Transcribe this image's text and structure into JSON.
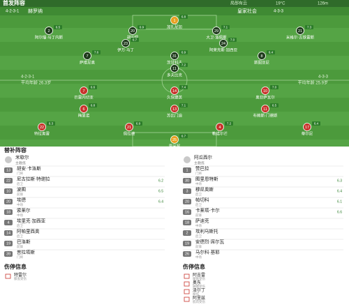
{
  "header": {
    "title": "首发阵容",
    "weather": "局部有云",
    "temperature": "19°C",
    "altitude": "126m"
  },
  "teams": [
    {
      "name": "赫罗纳",
      "formation": "4-2-3-1",
      "average_age": "平均年龄 26.3岁",
      "coach": "米歇尔",
      "coach_role": "主教练",
      "players": [
        {
          "number": "1",
          "name": "加扎尼加",
          "rating": "6.8"
        },
        {
          "number": "2",
          "name": "阿尔瑙·马丁内斯",
          "rating": "6.5"
        },
        {
          "number": "20",
          "name": "胡安佩",
          "rating": "6.9"
        },
        {
          "number": "29",
          "name": "大卫·洛佩斯",
          "rating": "7.1"
        },
        {
          "number": "21",
          "name": "米格尔·古铁雷斯",
          "rating": "7.3"
        },
        {
          "number": "23",
          "name": "伊万·马丁",
          "rating": "6.7"
        },
        {
          "number": "24",
          "name": "阿莱克斯·加西亚",
          "rating": "7.0"
        },
        {
          "number": "7",
          "name": "萨维尼奥",
          "rating": "7.6"
        },
        {
          "number": "31",
          "name": "茨甘科夫",
          "rating": "6.9"
        },
        {
          "number": "8",
          "name": "斯图亚尼",
          "rating": "6.4"
        },
        {
          "number": "11",
          "name": "多夫比克",
          "rating": "7.2"
        }
      ],
      "subs": [
        {
          "number": "13",
          "name": "胡安·卡洛斯",
          "position": "门将",
          "rating": ""
        },
        {
          "number": "22",
          "name": "尼古拉斯·特谢拉",
          "position": "后卫",
          "rating": "6.2"
        },
        {
          "number": "10",
          "name": "波图",
          "position": "前锋",
          "rating": "6.5"
        },
        {
          "number": "20",
          "name": "埃德",
          "position": "中场",
          "rating": "6.4"
        },
        {
          "number": "18",
          "name": "索莱尔",
          "position": "中场",
          "rating": ""
        },
        {
          "number": "4",
          "name": "埃里克·加西亚",
          "position": "后卫",
          "rating": ""
        },
        {
          "number": "14",
          "name": "阿帕里西奥",
          "position": "后卫",
          "rating": ""
        },
        {
          "number": "19",
          "name": "巴洛斯",
          "position": "前锋",
          "rating": ""
        },
        {
          "number": "39",
          "name": "普拉塔斯",
          "position": "门将",
          "rating": ""
        }
      ],
      "injuries_title": "伤停信息",
      "injuries": [
        {
          "name": "特雷尔",
          "reason": "膝盖受伤"
        }
      ]
    },
    {
      "name": "皇家社会",
      "formation": "4-3-3",
      "average_age": "平均年龄 25.9岁",
      "coach": "阿瓜西尔",
      "coach_role": "主教练",
      "players": [
        {
          "number": "7",
          "name": "巴雷内切亚",
          "rating": "6.6"
        },
        {
          "number": "14",
          "name": "久保建英",
          "rating": "7.4"
        },
        {
          "number": "10",
          "name": "奥亚萨瓦尔",
          "rating": "7.0"
        },
        {
          "number": "6",
          "name": "梅里诺",
          "rating": "6.8"
        },
        {
          "number": "13",
          "name": "苏比门迪",
          "rating": "7.1"
        },
        {
          "number": "11",
          "name": "布赖斯·门德斯",
          "rating": "6.5"
        },
        {
          "number": "22",
          "name": "特拉奥雷",
          "rating": "6.3"
        },
        {
          "number": "21",
          "name": "佩拉德",
          "rating": "6.9"
        },
        {
          "number": "4",
          "name": "勒诺尔芒",
          "rating": "7.2"
        },
        {
          "number": "17",
          "name": "蒂尔尼",
          "rating": "6.4"
        },
        {
          "number": "25",
          "name": "雷米罗",
          "rating": "6.7"
        }
      ],
      "subs": [
        {
          "number": "1",
          "name": "赞巴拉",
          "position": "门将",
          "rating": ""
        },
        {
          "number": "30",
          "name": "图里恩特斯",
          "position": "中场",
          "rating": "6.3"
        },
        {
          "number": "3",
          "name": "穆尼奥斯",
          "position": "后卫",
          "rating": "6.4"
        },
        {
          "number": "20",
          "name": "帕切科",
          "position": "后卫",
          "rating": "6.1"
        },
        {
          "number": "16",
          "name": "卡莱塔-卡尔",
          "position": "前锋",
          "rating": "6.6"
        },
        {
          "number": "18",
          "name": "萨迪克",
          "position": "中场",
          "rating": ""
        },
        {
          "number": "2",
          "name": "埃利乌斯托",
          "position": "后卫",
          "rating": ""
        },
        {
          "number": "19",
          "name": "安德烈·席尔瓦",
          "position": "前锋",
          "rating": ""
        },
        {
          "number": "26",
          "name": "马尔科·基耶",
          "position": "中场",
          "rating": ""
        }
      ],
      "injuries_title": "伤停信息",
      "injuries": [
        {
          "name": "阿吉雷",
          "reason": "腿筋受伤"
        },
        {
          "name": "奥东",
          "reason": "脚踝受伤"
        },
        {
          "name": "泽尔丁",
          "reason": "膝伤"
        },
        {
          "name": "阿里兹",
          "reason": "肌肉受伤"
        }
      ]
    }
  ],
  "subs_title": "替补阵容"
}
